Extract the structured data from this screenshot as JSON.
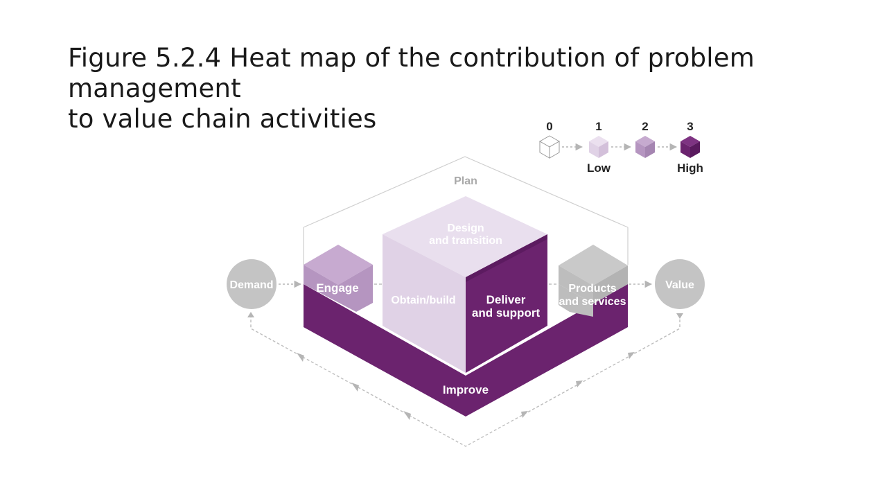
{
  "slide": {
    "title_line1": "Figure 5.2.4 Heat map of the contribution of problem management",
    "title_line2": "to value chain activities"
  },
  "legend": {
    "levels": [
      {
        "value": "0",
        "caption": "",
        "color": "#ffffff"
      },
      {
        "value": "1",
        "caption": "Low",
        "color": "#e0d2e6"
      },
      {
        "value": "2",
        "caption": "",
        "color": "#b595c0"
      },
      {
        "value": "3",
        "caption": "High",
        "color": "#6b236e"
      }
    ]
  },
  "diagram": {
    "plan": {
      "label": "Plan",
      "level": 0
    },
    "demand": {
      "label": "Demand"
    },
    "value": {
      "label": "Value"
    },
    "engage": {
      "label": "Engage",
      "level": 2
    },
    "design": {
      "line1": "Design",
      "line2": "and transition",
      "level": 1
    },
    "obtain": {
      "label": "Obtain/build",
      "level": 1
    },
    "deliver": {
      "line1": "Deliver",
      "line2": "and support",
      "level": 3
    },
    "products": {
      "line1": "Products",
      "line2": "and services",
      "level": 0
    },
    "improve": {
      "label": "Improve",
      "level": 3
    }
  },
  "colors": {
    "level0": "#ffffff",
    "level1": "#e0d2e6",
    "level2": "#b595c0",
    "level3": "#6b236e",
    "grey_block": "#bdbdbd",
    "grey_circle": "#c4c4c4",
    "outline": "#cfcfcf",
    "arrow": "#b5b5b5"
  }
}
